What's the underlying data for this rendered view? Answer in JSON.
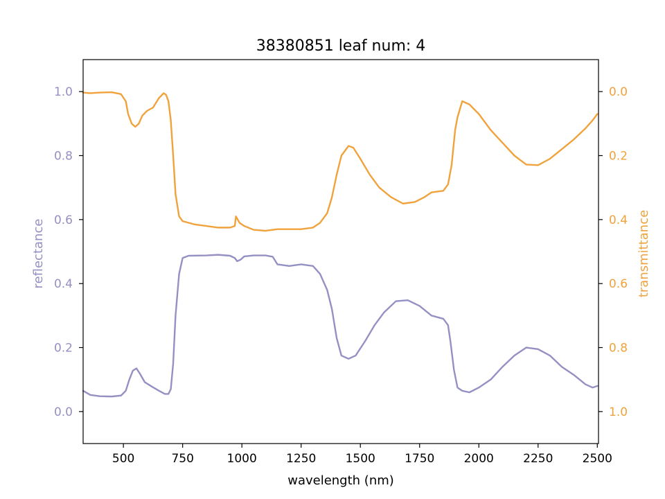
{
  "chart_data": {
    "type": "line",
    "title": "38380851 leaf num: 4",
    "xlabel": "wavelength (nm)",
    "ylabel_left": "reflectance",
    "ylabel_right": "transmittance",
    "xlim": [
      330,
      2505
    ],
    "ylim_left": [
      -0.1,
      1.1
    ],
    "ylim_right": [
      1.1,
      -0.1
    ],
    "x_ticks": [
      500,
      750,
      1000,
      1250,
      1500,
      1750,
      2000,
      2250,
      2500
    ],
    "y_left_ticks": [
      0.0,
      0.2,
      0.4,
      0.6,
      0.8,
      1.0
    ],
    "y_right_ticks": [
      0.0,
      0.2,
      0.4,
      0.6,
      0.8,
      1.0
    ],
    "colors": {
      "reflectance": "#9590c4",
      "transmittance": "#f0a23c",
      "axis": "#000000"
    },
    "grid": false,
    "series": [
      {
        "name": "reflectance",
        "axis": "left",
        "points": [
          [
            330,
            0.065
          ],
          [
            360,
            0.052
          ],
          [
            400,
            0.048
          ],
          [
            450,
            0.047
          ],
          [
            490,
            0.05
          ],
          [
            510,
            0.065
          ],
          [
            525,
            0.1
          ],
          [
            540,
            0.128
          ],
          [
            555,
            0.135
          ],
          [
            570,
            0.118
          ],
          [
            590,
            0.092
          ],
          [
            620,
            0.078
          ],
          [
            650,
            0.065
          ],
          [
            675,
            0.055
          ],
          [
            690,
            0.055
          ],
          [
            700,
            0.07
          ],
          [
            710,
            0.15
          ],
          [
            720,
            0.3
          ],
          [
            735,
            0.43
          ],
          [
            750,
            0.48
          ],
          [
            775,
            0.487
          ],
          [
            850,
            0.488
          ],
          [
            900,
            0.49
          ],
          [
            950,
            0.487
          ],
          [
            970,
            0.48
          ],
          [
            980,
            0.47
          ],
          [
            995,
            0.475
          ],
          [
            1010,
            0.485
          ],
          [
            1050,
            0.488
          ],
          [
            1100,
            0.488
          ],
          [
            1130,
            0.484
          ],
          [
            1150,
            0.46
          ],
          [
            1200,
            0.455
          ],
          [
            1250,
            0.46
          ],
          [
            1300,
            0.455
          ],
          [
            1330,
            0.43
          ],
          [
            1360,
            0.38
          ],
          [
            1380,
            0.32
          ],
          [
            1400,
            0.23
          ],
          [
            1420,
            0.175
          ],
          [
            1450,
            0.165
          ],
          [
            1480,
            0.175
          ],
          [
            1520,
            0.22
          ],
          [
            1560,
            0.27
          ],
          [
            1600,
            0.31
          ],
          [
            1650,
            0.345
          ],
          [
            1700,
            0.348
          ],
          [
            1750,
            0.33
          ],
          [
            1800,
            0.3
          ],
          [
            1850,
            0.29
          ],
          [
            1870,
            0.27
          ],
          [
            1880,
            0.22
          ],
          [
            1895,
            0.13
          ],
          [
            1910,
            0.075
          ],
          [
            1930,
            0.065
          ],
          [
            1960,
            0.06
          ],
          [
            2000,
            0.075
          ],
          [
            2050,
            0.1
          ],
          [
            2100,
            0.14
          ],
          [
            2150,
            0.175
          ],
          [
            2200,
            0.2
          ],
          [
            2250,
            0.195
          ],
          [
            2300,
            0.175
          ],
          [
            2350,
            0.14
          ],
          [
            2400,
            0.115
          ],
          [
            2450,
            0.085
          ],
          [
            2480,
            0.075
          ],
          [
            2500,
            0.08
          ]
        ]
      },
      {
        "name": "transmittance",
        "axis": "right",
        "points": [
          [
            330,
            0.003
          ],
          [
            360,
            0.005
          ],
          [
            400,
            0.003
          ],
          [
            450,
            0.002
          ],
          [
            490,
            0.008
          ],
          [
            510,
            0.03
          ],
          [
            520,
            0.07
          ],
          [
            535,
            0.1
          ],
          [
            550,
            0.11
          ],
          [
            565,
            0.1
          ],
          [
            580,
            0.075
          ],
          [
            600,
            0.06
          ],
          [
            625,
            0.05
          ],
          [
            650,
            0.02
          ],
          [
            670,
            0.005
          ],
          [
            680,
            0.01
          ],
          [
            690,
            0.03
          ],
          [
            700,
            0.09
          ],
          [
            710,
            0.2
          ],
          [
            720,
            0.32
          ],
          [
            735,
            0.39
          ],
          [
            750,
            0.405
          ],
          [
            800,
            0.415
          ],
          [
            850,
            0.42
          ],
          [
            900,
            0.425
          ],
          [
            950,
            0.425
          ],
          [
            970,
            0.42
          ],
          [
            975,
            0.39
          ],
          [
            990,
            0.41
          ],
          [
            1010,
            0.42
          ],
          [
            1050,
            0.432
          ],
          [
            1100,
            0.435
          ],
          [
            1150,
            0.43
          ],
          [
            1200,
            0.43
          ],
          [
            1250,
            0.43
          ],
          [
            1300,
            0.425
          ],
          [
            1330,
            0.41
          ],
          [
            1360,
            0.38
          ],
          [
            1380,
            0.33
          ],
          [
            1400,
            0.26
          ],
          [
            1420,
            0.2
          ],
          [
            1450,
            0.17
          ],
          [
            1470,
            0.175
          ],
          [
            1500,
            0.21
          ],
          [
            1540,
            0.26
          ],
          [
            1580,
            0.3
          ],
          [
            1630,
            0.33
          ],
          [
            1680,
            0.35
          ],
          [
            1730,
            0.345
          ],
          [
            1770,
            0.33
          ],
          [
            1800,
            0.315
          ],
          [
            1850,
            0.31
          ],
          [
            1870,
            0.29
          ],
          [
            1885,
            0.23
          ],
          [
            1900,
            0.12
          ],
          [
            1910,
            0.08
          ],
          [
            1930,
            0.03
          ],
          [
            1960,
            0.04
          ],
          [
            2000,
            0.07
          ],
          [
            2050,
            0.12
          ],
          [
            2100,
            0.16
          ],
          [
            2150,
            0.2
          ],
          [
            2200,
            0.228
          ],
          [
            2250,
            0.23
          ],
          [
            2300,
            0.21
          ],
          [
            2350,
            0.18
          ],
          [
            2400,
            0.15
          ],
          [
            2450,
            0.115
          ],
          [
            2480,
            0.09
          ],
          [
            2500,
            0.07
          ]
        ]
      }
    ]
  }
}
